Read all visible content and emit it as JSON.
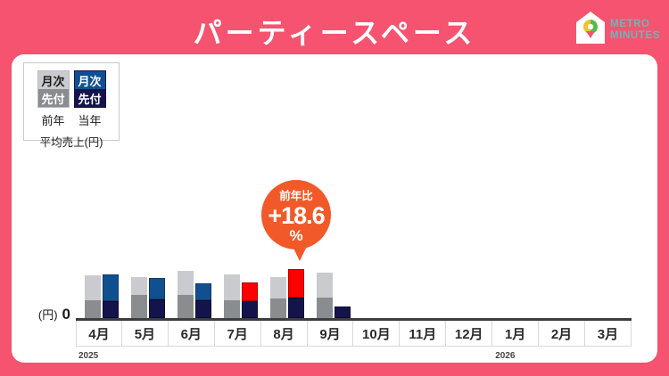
{
  "header": {
    "title": "パーティースペース"
  },
  "logo": {
    "line1": "METRO",
    "line2": "MINUTES"
  },
  "legend": {
    "prev": {
      "monthly": "月次",
      "advance": "先付",
      "label": "前年"
    },
    "curr": {
      "monthly": "月次",
      "advance": "先付",
      "label": "当年"
    },
    "caption": "平均売上(円)"
  },
  "axis": {
    "unit": "(円)",
    "zero": "0"
  },
  "callout": {
    "label": "前年比",
    "value": "+18.6",
    "unit": "%"
  },
  "colors": {
    "background": "#f5536f",
    "card": "#ffffff",
    "prev_monthly": "#c9cbce",
    "prev_advance": "#8a8d90",
    "curr_monthly": "#11508f",
    "curr_advance": "#14134b",
    "highlight_red": "#fe0000",
    "callout_orange": "#f15a28",
    "axis_line": "#3d3d3d",
    "logo_text": "#6fb5b9"
  },
  "chart_data": {
    "type": "bar",
    "title": "パーティースペース 平均売上(円)",
    "ylabel": "平均売上(円)",
    "y_unit": "(円)",
    "y_axis_zero_label": "0",
    "value_note": "relative heights (no numeric scale shown on axis)",
    "categories": [
      "4月",
      "5月",
      "6月",
      "7月",
      "8月",
      "9月",
      "10月",
      "11月",
      "12月",
      "1月",
      "2月",
      "3月"
    ],
    "year_markers": [
      {
        "index": 0,
        "label": "2025"
      },
      {
        "index": 9,
        "label": "2026"
      }
    ],
    "series": [
      {
        "name": "前年 先付",
        "group": "prev",
        "stack_pos": "bottom",
        "color": "#8a8d90",
        "values": [
          20,
          26,
          26,
          20,
          22,
          23,
          0,
          0,
          0,
          0,
          0,
          0
        ]
      },
      {
        "name": "前年 月次",
        "group": "prev",
        "stack_pos": "top",
        "color": "#c9cbce",
        "values": [
          28,
          20,
          27,
          29,
          24,
          28,
          0,
          0,
          0,
          0,
          0,
          0
        ]
      },
      {
        "name": "当年 先付",
        "group": "curr",
        "stack_pos": "bottom",
        "color": "#14134b",
        "values": [
          19,
          21,
          20,
          19,
          23,
          13,
          0,
          0,
          0,
          0,
          0,
          0
        ]
      },
      {
        "name": "当年 月次",
        "group": "curr",
        "stack_pos": "top",
        "color": "#11508f",
        "highlight_color": "#fe0000",
        "highlight_indices": [
          3,
          4
        ],
        "values": [
          30,
          24,
          19,
          21,
          32,
          0,
          0,
          0,
          0,
          0,
          0,
          0
        ]
      }
    ],
    "annotation": {
      "target_category": "8月",
      "label": "前年比",
      "value": "+18.6",
      "unit": "%"
    },
    "legend_position": "top-left",
    "grid": false
  }
}
